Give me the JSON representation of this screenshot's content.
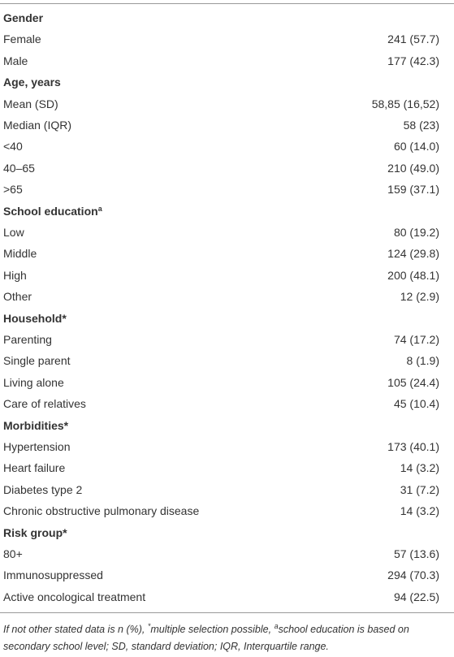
{
  "table": {
    "sections": [
      {
        "title": "Gender",
        "rows": [
          [
            "Female",
            "241 (57.7)"
          ],
          [
            "Male",
            "177 (42.3)"
          ]
        ]
      },
      {
        "title": "Age, years",
        "rows": [
          [
            "Mean (SD)",
            "58,85 (16,52)"
          ],
          [
            "Median (IQR)",
            "58 (23)"
          ],
          [
            "<40",
            "60 (14.0)"
          ],
          [
            "40–65",
            "210 (49.0)"
          ],
          [
            ">65",
            "159 (37.1)"
          ]
        ]
      },
      {
        "title": "School education",
        "note": "a",
        "rows": [
          [
            "Low",
            "80 (19.2)"
          ],
          [
            "Middle",
            "124 (29.8)"
          ],
          [
            "High",
            "200 (48.1)"
          ],
          [
            "Other",
            "12 (2.9)"
          ]
        ]
      },
      {
        "title": "Household*",
        "rows": [
          [
            "Parenting",
            "74 (17.2)"
          ],
          [
            "Single parent",
            "8 (1.9)"
          ],
          [
            "Living alone",
            "105 (24.4)"
          ],
          [
            "Care of relatives",
            "45 (10.4)"
          ]
        ]
      },
      {
        "title": "Morbidities*",
        "rows": [
          [
            "Hypertension",
            "173 (40.1)"
          ],
          [
            "Heart failure",
            "14 (3.2)"
          ],
          [
            "Diabetes type 2",
            "31 (7.2)"
          ],
          [
            "Chronic obstructive pulmonary disease",
            "14 (3.2)"
          ]
        ]
      },
      {
        "title": "Risk group*",
        "rows": [
          [
            "80+",
            "57 (13.6)"
          ],
          [
            "Immunosuppressed",
            "294 (70.3)"
          ],
          [
            "Active oncological treatment",
            "94 (22.5)"
          ]
        ]
      }
    ]
  },
  "footnote": {
    "text1": "If not other stated data is n (%), ",
    "sup1": "*",
    "text2": "multiple selection possible, ",
    "sup2": "a",
    "text3": "school education is based on secondary school level; SD, standard deviation; IQR, Interquartile range."
  }
}
